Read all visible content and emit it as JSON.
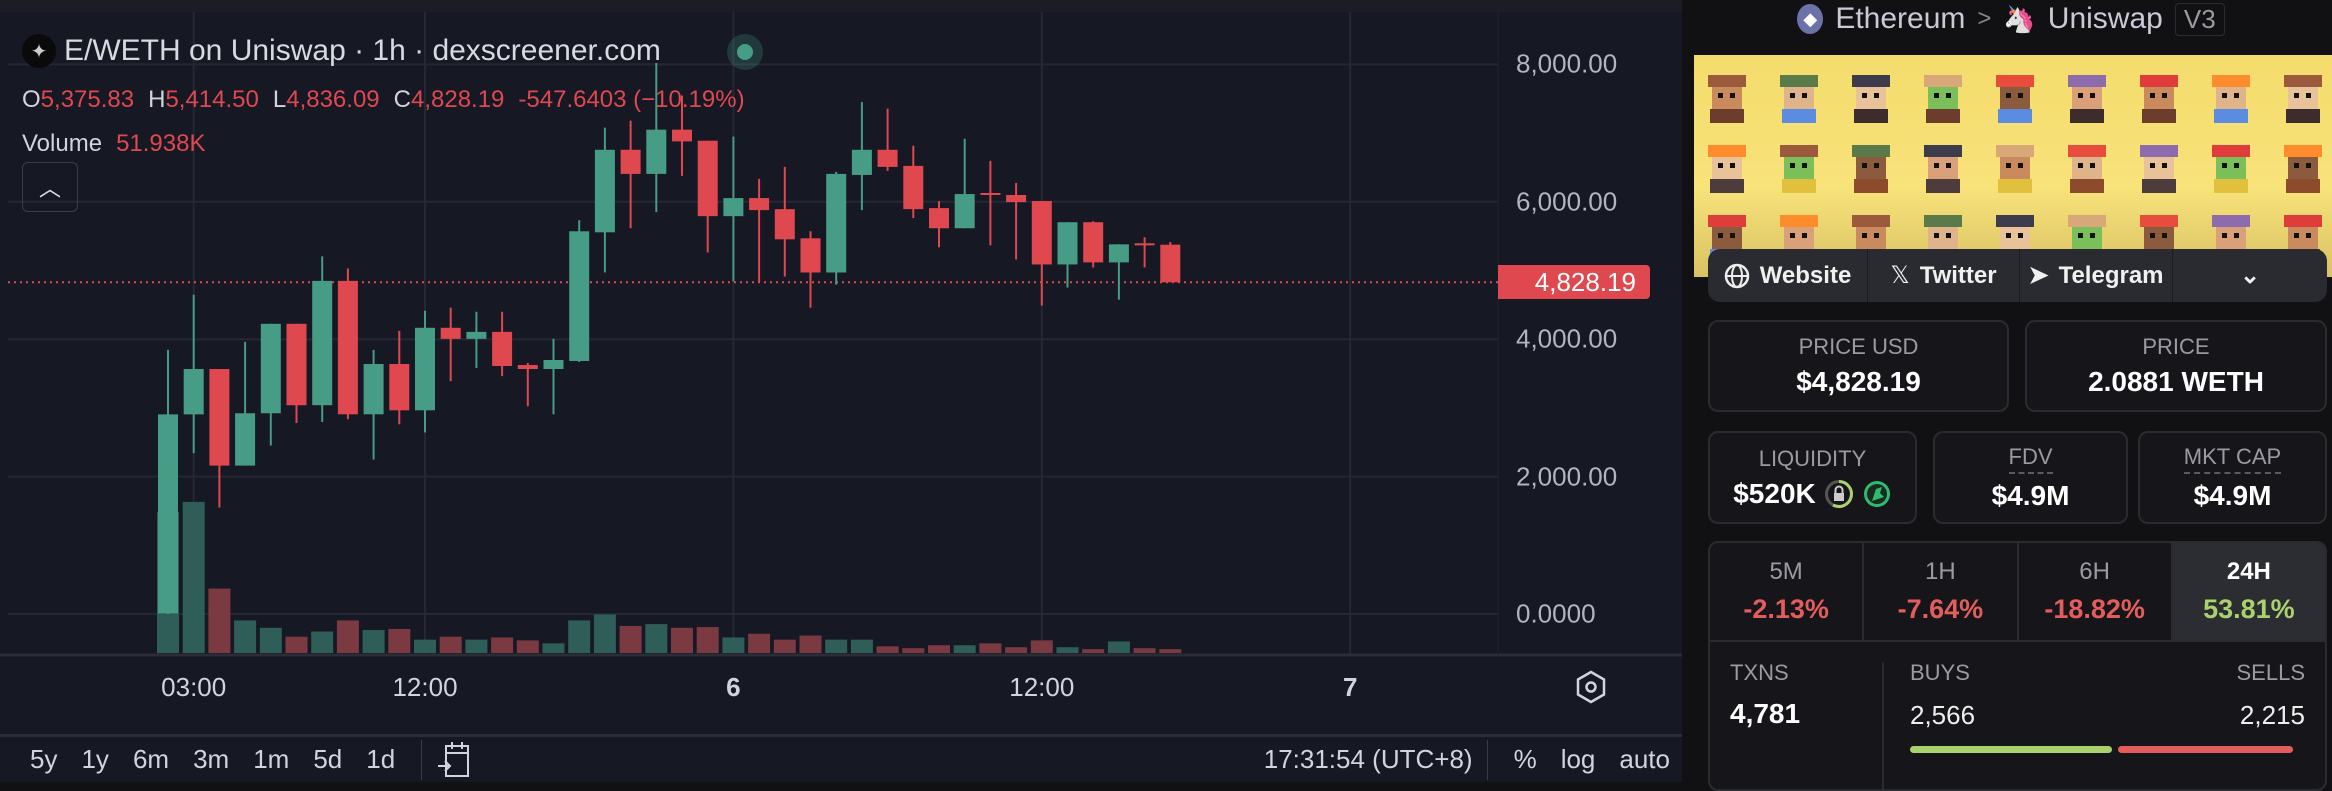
{
  "chart": {
    "title": "E/WETH on Uniswap · 1h · dexscreener.com",
    "ohlc": {
      "o_label": "O",
      "o": "5,375.83",
      "h_label": "H",
      "h": "5,414.50",
      "l_label": "L",
      "l": "4,836.09",
      "c_label": "C",
      "c": "4,828.19",
      "change": "-547.6403 (−10.19%)"
    },
    "volume_label": "Volume",
    "volume_value": "51.938K",
    "collapse_icon": "chevron-up-icon",
    "last_price_label": "4,828.19",
    "timeframes": [
      "5y",
      "1y",
      "6m",
      "3m",
      "1m",
      "5d",
      "1d"
    ],
    "clock": "17:31:54 (UTC+8)",
    "scale_buttons": {
      "percent": "%",
      "log": "log",
      "auto": "auto"
    },
    "colors": {
      "up": "#469c84",
      "down": "#e0484f",
      "vol_up": "#2f5e59",
      "vol_down": "#7b3a42",
      "background": "#161824"
    }
  },
  "chart_data": {
    "type": "candlestick",
    "interval": "1h",
    "y_ticks": [
      "8,000.00",
      "6,000.00",
      "4,000.00",
      "2,000.00",
      "0.0000"
    ],
    "y_tick_values": [
      8000,
      6000,
      4000,
      2000,
      0
    ],
    "ylim": [
      0,
      8900
    ],
    "x_ticks": [
      {
        "label": "03:00",
        "t": "5 03:00",
        "bold": false
      },
      {
        "label": "12:00",
        "t": "5 12:00",
        "bold": false
      },
      {
        "label": "6",
        "t": "6 00:00",
        "bold": true
      },
      {
        "label": "12:00",
        "t": "6 12:00",
        "bold": false
      },
      {
        "label": "7",
        "t": "7 00:00",
        "bold": true
      }
    ],
    "last_price": 4828.19,
    "volume_unit": "K",
    "candles": [
      {
        "t": "5 02:00",
        "o": 10,
        "h": 3844,
        "l": 0,
        "c": 2906,
        "v": 1900
      },
      {
        "t": "5 03:00",
        "o": 2906,
        "h": 4649,
        "l": 2341,
        "c": 3566,
        "v": 2040
      },
      {
        "t": "5 04:00",
        "o": 3566,
        "h": 3566,
        "l": 1550,
        "c": 2160,
        "v": 870
      },
      {
        "t": "5 05:00",
        "o": 2160,
        "h": 3961,
        "l": 2160,
        "c": 2922,
        "v": 440
      },
      {
        "t": "5 06:00",
        "o": 2922,
        "h": 4224,
        "l": 2453,
        "c": 4224,
        "v": 340
      },
      {
        "t": "5 07:00",
        "o": 4224,
        "h": 4224,
        "l": 2780,
        "c": 3039,
        "v": 220
      },
      {
        "t": "5 08:00",
        "o": 3039,
        "h": 5205,
        "l": 2795,
        "c": 4849,
        "v": 290
      },
      {
        "t": "5 09:00",
        "o": 4849,
        "h": 5030,
        "l": 2834,
        "c": 2907,
        "v": 440
      },
      {
        "t": "5 10:00",
        "o": 2907,
        "h": 3844,
        "l": 2248,
        "c": 3639,
        "v": 310
      },
      {
        "t": "5 11:00",
        "o": 3639,
        "h": 4122,
        "l": 2760,
        "c": 2965,
        "v": 325
      },
      {
        "t": "5 12:00",
        "o": 2965,
        "h": 4415,
        "l": 2643,
        "c": 4166,
        "v": 180
      },
      {
        "t": "5 13:00",
        "o": 4166,
        "h": 4459,
        "l": 3390,
        "c": 4005,
        "v": 220
      },
      {
        "t": "5 14:00",
        "o": 4005,
        "h": 4400,
        "l": 3580,
        "c": 4107,
        "v": 180
      },
      {
        "t": "5 15:00",
        "o": 4107,
        "h": 4400,
        "l": 3463,
        "c": 3610,
        "v": 210
      },
      {
        "t": "5 16:00",
        "o": 3624,
        "h": 3654,
        "l": 3024,
        "c": 3566,
        "v": 170
      },
      {
        "t": "5 17:00",
        "o": 3566,
        "h": 4005,
        "l": 2907,
        "c": 3697,
        "v": 130
      },
      {
        "t": "5 18:00",
        "o": 3683,
        "h": 5732,
        "l": 3668,
        "c": 5571,
        "v": 440
      },
      {
        "t": "5 19:00",
        "o": 5556,
        "h": 7079,
        "l": 4971,
        "c": 6757,
        "v": 520
      },
      {
        "t": "5 20:00",
        "o": 6757,
        "h": 7182,
        "l": 5615,
        "c": 6406,
        "v": 365
      },
      {
        "t": "5 21:00",
        "o": 6406,
        "h": 8020,
        "l": 5850,
        "c": 7050,
        "v": 390
      },
      {
        "t": "5 22:00",
        "o": 7050,
        "h": 7547,
        "l": 6377,
        "c": 6879,
        "v": 340
      },
      {
        "t": "5 23:00",
        "o": 6889,
        "h": 6889,
        "l": 5264,
        "c": 5791,
        "v": 350
      },
      {
        "t": "6 00:00",
        "o": 5791,
        "h": 6948,
        "l": 4839,
        "c": 6054,
        "v": 210
      },
      {
        "t": "6 01:00",
        "o": 6054,
        "h": 6333,
        "l": 4825,
        "c": 5879,
        "v": 260
      },
      {
        "t": "6 02:00",
        "o": 5893,
        "h": 6508,
        "l": 4913,
        "c": 5454,
        "v": 180
      },
      {
        "t": "6 03:00",
        "o": 5469,
        "h": 5571,
        "l": 4459,
        "c": 4971,
        "v": 235
      },
      {
        "t": "6 04:00",
        "o": 4971,
        "h": 6435,
        "l": 4795,
        "c": 6406,
        "v": 180
      },
      {
        "t": "6 05:00",
        "o": 6391,
        "h": 7450,
        "l": 5879,
        "c": 6757,
        "v": 180
      },
      {
        "t": "6 06:00",
        "o": 6757,
        "h": 7357,
        "l": 6450,
        "c": 6508,
        "v": 90
      },
      {
        "t": "6 07:00",
        "o": 6523,
        "h": 6816,
        "l": 5762,
        "c": 5893,
        "v": 65
      },
      {
        "t": "6 08:00",
        "o": 5908,
        "h": 6011,
        "l": 5337,
        "c": 5615,
        "v": 105
      },
      {
        "t": "6 09:00",
        "o": 5615,
        "h": 6918,
        "l": 5615,
        "c": 6113,
        "v": 105
      },
      {
        "t": "6 10:00",
        "o": 6128,
        "h": 6596,
        "l": 5366,
        "c": 6099,
        "v": 130
      },
      {
        "t": "6 11:00",
        "o": 6099,
        "h": 6274,
        "l": 5161,
        "c": 5996,
        "v": 78
      },
      {
        "t": "6 12:00",
        "o": 6011,
        "h": 6011,
        "l": 4488,
        "c": 5088,
        "v": 170
      },
      {
        "t": "6 13:00",
        "o": 5088,
        "h": 5703,
        "l": 4752,
        "c": 5703,
        "v": 78
      },
      {
        "t": "6 14:00",
        "o": 5703,
        "h": 5718,
        "l": 5044,
        "c": 5118,
        "v": 52
      },
      {
        "t": "6 15:00",
        "o": 5118,
        "h": 5381,
        "l": 4576,
        "c": 5381,
        "v": 156
      },
      {
        "t": "6 16:00",
        "o": 5396,
        "h": 5484,
        "l": 5044,
        "c": 5366,
        "v": 65
      },
      {
        "t": "6 17:00",
        "o": 5375.83,
        "h": 5414.5,
        "l": 4836.09,
        "c": 4828.19,
        "v": 51.938
      }
    ]
  },
  "right_panel": {
    "breadcrumb": {
      "chain": "Ethereum",
      "dex": "Uniswap",
      "version": "V3",
      "separator": ">"
    },
    "links": [
      {
        "label": "Website",
        "icon": "globe-icon"
      },
      {
        "label": "Twitter",
        "icon": "x-logo-icon"
      },
      {
        "label": "Telegram",
        "icon": "telegram-icon"
      }
    ],
    "links_more_icon": "chevron-down-icon",
    "price_usd": {
      "label": "PRICE USD",
      "value": "$4,828.19"
    },
    "price_native": {
      "label": "PRICE",
      "value": "2.0881 WETH"
    },
    "liquidity": {
      "label": "LIQUIDITY",
      "value": "$520K",
      "lock_icon": "lock-icon",
      "dex_icon": "uniswap-icon"
    },
    "fdv": {
      "label": "FDV",
      "value": "$4.9M"
    },
    "mkt_cap": {
      "label": "MKT CAP",
      "value": "$4.9M"
    },
    "changes": [
      {
        "label": "5M",
        "value": "-2.13%",
        "dir": "neg"
      },
      {
        "label": "1H",
        "value": "-7.64%",
        "dir": "neg"
      },
      {
        "label": "6H",
        "value": "-18.82%",
        "dir": "neg"
      },
      {
        "label": "24H",
        "value": "53.81%",
        "dir": "pos",
        "selected": true
      }
    ],
    "txns": {
      "label": "TXNS",
      "value": "4,781",
      "buys_label": "BUYS",
      "buys": "2,566",
      "sells_label": "SELLS",
      "sells": "2,215",
      "buy_fraction": 0.5367
    },
    "colors": {
      "buy": "#a9d16d",
      "sell": "#e35d5d",
      "banner": "#f4dc6c"
    }
  }
}
